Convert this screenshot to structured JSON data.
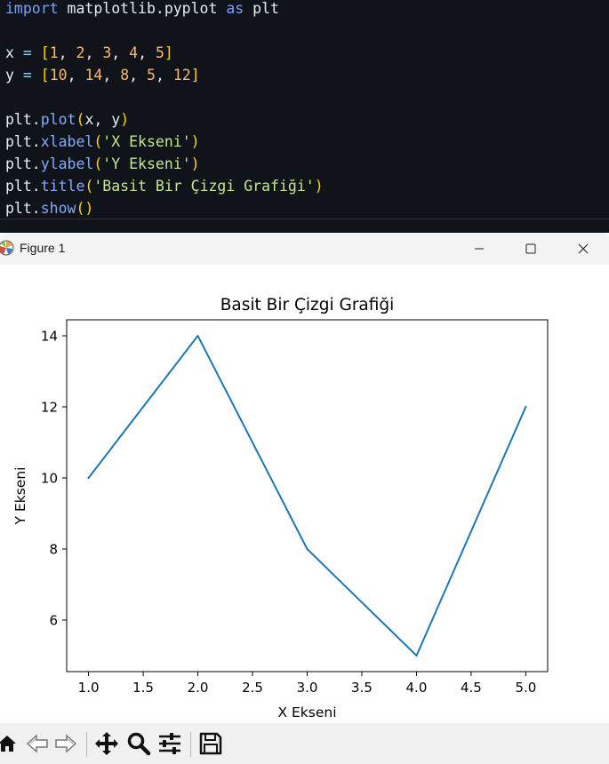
{
  "editor": {
    "lines": [
      [
        {
          "c": "kw",
          "t": "import"
        },
        {
          "c": "nm",
          "t": " matplotlib.pyplot "
        },
        {
          "c": "kw",
          "t": "as"
        },
        {
          "c": "nm",
          "t": " plt"
        }
      ],
      [],
      [
        {
          "c": "nm",
          "t": "x "
        },
        {
          "c": "op",
          "t": "="
        },
        {
          "c": "nm",
          "t": " "
        },
        {
          "c": "br",
          "t": "["
        },
        {
          "c": "num",
          "t": "1"
        },
        {
          "c": "pn",
          "t": ", "
        },
        {
          "c": "num",
          "t": "2"
        },
        {
          "c": "pn",
          "t": ", "
        },
        {
          "c": "num",
          "t": "3"
        },
        {
          "c": "pn",
          "t": ", "
        },
        {
          "c": "num",
          "t": "4"
        },
        {
          "c": "pn",
          "t": ", "
        },
        {
          "c": "num",
          "t": "5"
        },
        {
          "c": "br",
          "t": "]"
        }
      ],
      [
        {
          "c": "nm",
          "t": "y "
        },
        {
          "c": "op",
          "t": "="
        },
        {
          "c": "nm",
          "t": " "
        },
        {
          "c": "br",
          "t": "["
        },
        {
          "c": "num",
          "t": "10"
        },
        {
          "c": "pn",
          "t": ", "
        },
        {
          "c": "num",
          "t": "14"
        },
        {
          "c": "pn",
          "t": ", "
        },
        {
          "c": "num",
          "t": "8"
        },
        {
          "c": "pn",
          "t": ", "
        },
        {
          "c": "num",
          "t": "5"
        },
        {
          "c": "pn",
          "t": ", "
        },
        {
          "c": "num",
          "t": "12"
        },
        {
          "c": "br",
          "t": "]"
        }
      ],
      [],
      [
        {
          "c": "nm",
          "t": "plt."
        },
        {
          "c": "fn",
          "t": "plot"
        },
        {
          "c": "br",
          "t": "("
        },
        {
          "c": "nm",
          "t": "x, y"
        },
        {
          "c": "br",
          "t": ")"
        }
      ],
      [
        {
          "c": "nm",
          "t": "plt."
        },
        {
          "c": "fn",
          "t": "xlabel"
        },
        {
          "c": "br",
          "t": "("
        },
        {
          "c": "str",
          "t": "'X Ekseni'"
        },
        {
          "c": "br",
          "t": ")"
        }
      ],
      [
        {
          "c": "nm",
          "t": "plt."
        },
        {
          "c": "fn",
          "t": "ylabel"
        },
        {
          "c": "br",
          "t": "("
        },
        {
          "c": "str",
          "t": "'Y Ekseni'"
        },
        {
          "c": "br",
          "t": ")"
        }
      ],
      [
        {
          "c": "nm",
          "t": "plt."
        },
        {
          "c": "fn",
          "t": "title"
        },
        {
          "c": "br",
          "t": "("
        },
        {
          "c": "str",
          "t": "'Basit Bir Çizgi Grafiği'"
        },
        {
          "c": "br",
          "t": ")"
        }
      ],
      [
        {
          "c": "nm",
          "t": "plt."
        },
        {
          "c": "fn",
          "t": "show"
        },
        {
          "c": "br",
          "t": "()"
        }
      ]
    ]
  },
  "window": {
    "title": "Figure 1"
  },
  "chart_data": {
    "type": "line",
    "title": "Basit Bir Çizgi Grafiği",
    "xlabel": "X Ekseni",
    "ylabel": "Y Ekseni",
    "x": [
      1,
      2,
      3,
      4,
      5
    ],
    "series": [
      {
        "values": [
          10,
          14,
          8,
          5,
          12
        ],
        "color": "#1f77b4"
      }
    ],
    "xlim": [
      0.8,
      5.2
    ],
    "ylim": [
      4.55,
      14.45
    ],
    "xticks": [
      "1.0",
      "1.5",
      "2.0",
      "2.5",
      "3.0",
      "3.5",
      "4.0",
      "4.5",
      "5.0"
    ],
    "yticks": [
      "6",
      "8",
      "10",
      "12",
      "14"
    ],
    "grid": false
  },
  "toolbar": {
    "icons": [
      "home-icon",
      "back-arrow-icon",
      "forward-arrow-icon",
      "pan-icon",
      "zoom-icon",
      "configure-subplots-icon",
      "save-icon"
    ]
  }
}
